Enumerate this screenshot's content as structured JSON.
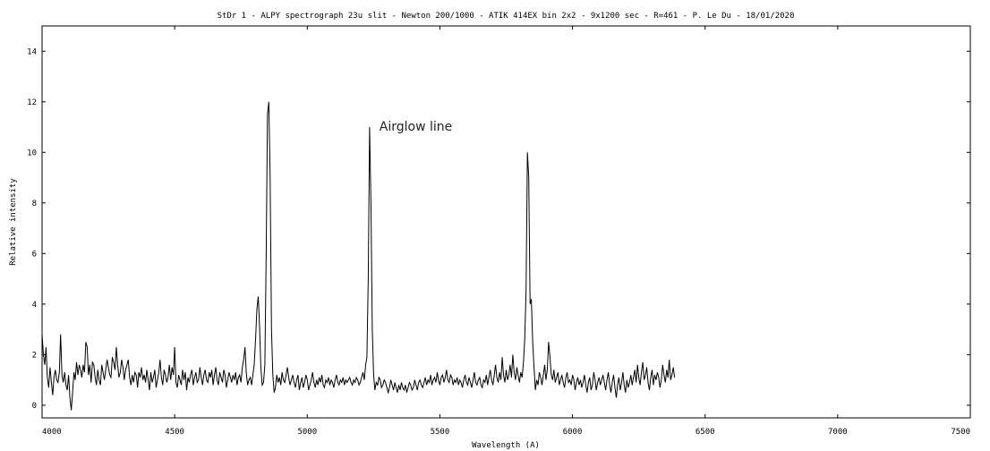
{
  "chart_data": {
    "type": "line",
    "title": "StDr 1 - ALPY spectrograph 23u slit - Newton 200/1000 - ATIK 414EX bin 2x2 - 9x1200 sec - R=461 - P. Le Du - 18/01/2020",
    "xlabel": "Wavelength (A)",
    "ylabel": "Relative intensity",
    "xlim": [
      4000,
      7500
    ],
    "ylim": [
      -0.5,
      15
    ],
    "x_ticks": [
      4000,
      4500,
      5000,
      5500,
      6000,
      6500,
      7000,
      7500
    ],
    "y_ticks": [
      0,
      2,
      4,
      6,
      8,
      10,
      12,
      14
    ],
    "grid": false,
    "annotations": [
      {
        "text": "Airglow line",
        "x": 5577,
        "y": 11.0
      }
    ],
    "series": [
      {
        "x_start": 4000,
        "x_step": 5,
        "values": [
          2.8,
          2.0,
          1.6,
          2.3,
          1.1,
          0.7,
          1.5,
          0.9,
          0.4,
          1.1,
          1.4,
          1.0,
          0.9,
          1.3,
          2.8,
          1.2,
          0.9,
          1.3,
          0.8,
          0.6,
          1.2,
          0.3,
          -0.2,
          0.5,
          1.3,
          1.0,
          1.7,
          1.2,
          1.6,
          1.4,
          1.1,
          1.6,
          1.3,
          2.5,
          2.3,
          1.2,
          1.6,
          0.9,
          1.7,
          1.6,
          1.1,
          0.8,
          1.4,
          1.0,
          0.8,
          1.6,
          1.3,
          1.0,
          1.4,
          1.8,
          1.5,
          1.2,
          1.1,
          1.9,
          1.7,
          1.4,
          2.3,
          1.6,
          1.1,
          1.3,
          1.8,
          1.5,
          1.0,
          1.4,
          1.6,
          1.8,
          1.1,
          0.8,
          1.2,
          0.9,
          1.3,
          1.2,
          0.7,
          1.3,
          1.1,
          1.5,
          1.0,
          1.2,
          0.9,
          1.4,
          1.0,
          0.6,
          1.3,
          0.9,
          1.1,
          1.4,
          0.7,
          1.0,
          1.3,
          1.8,
          1.1,
          0.8,
          1.4,
          1.2,
          0.9,
          1.1,
          1.6,
          1.0,
          1.5,
          1.2,
          2.3,
          0.9,
          0.7,
          1.2,
          1.0,
          0.8,
          1.4,
          1.0,
          1.3,
          0.6,
          1.1,
          0.9,
          1.2,
          1.4,
          0.8,
          1.1,
          1.3,
          0.9,
          1.0,
          1.5,
          1.1,
          0.8,
          1.2,
          1.4,
          1.0,
          0.9,
          1.3,
          1.1,
          1.4,
          0.8,
          1.2,
          1.5,
          1.0,
          0.8,
          1.3,
          1.1,
          0.9,
          1.4,
          1.2,
          0.7,
          1.0,
          1.3,
          1.1,
          0.9,
          1.2,
          1.0,
          1.3,
          0.8,
          1.1,
          1.2,
          0.9,
          1.5,
          1.8,
          2.3,
          1.3,
          0.8,
          1.0,
          1.1,
          0.8,
          1.2,
          1.6,
          2.6,
          3.8,
          4.3,
          3.1,
          1.5,
          0.8,
          0.9,
          1.6,
          6.0,
          11.5,
          12.0,
          9.0,
          3.0,
          1.2,
          0.5,
          0.7,
          1.2,
          0.9,
          1.1,
          0.8,
          1.3,
          1.0,
          0.9,
          1.2,
          1.5,
          1.1,
          0.8,
          1.0,
          1.2,
          0.9,
          0.7,
          1.0,
          1.2,
          0.6,
          0.9,
          1.1,
          0.7,
          0.9,
          1.2,
          1.0,
          0.6,
          0.8,
          1.0,
          1.3,
          0.9,
          0.7,
          1.0,
          0.8,
          1.1,
          0.9,
          1.2,
          0.8,
          0.7,
          1.0,
          0.9,
          1.1,
          0.8,
          1.0,
          0.9,
          0.7,
          1.0,
          1.2,
          0.9,
          0.8,
          1.0,
          0.9,
          1.1,
          0.8,
          1.0,
          0.9,
          1.0,
          1.1,
          0.9,
          0.8,
          1.0,
          0.9,
          1.1,
          1.0,
          0.8,
          0.9,
          1.1,
          1.3,
          1.0,
          1.6,
          1.9,
          5.0,
          11.0,
          8.0,
          3.0,
          1.2,
          0.6,
          0.9,
          0.8,
          1.1,
          1.0,
          0.7,
          0.8,
          1.0,
          0.9,
          0.7,
          0.5,
          0.7,
          1.0,
          0.8,
          0.6,
          0.9,
          0.7,
          0.5,
          0.8,
          0.6,
          0.9,
          0.7,
          0.6,
          0.8,
          0.5,
          0.7,
          0.9,
          0.8,
          0.6,
          0.7,
          1.0,
          0.8,
          0.6,
          0.9,
          1.0,
          0.8,
          0.7,
          0.9,
          1.1,
          0.8,
          1.0,
          0.9,
          1.2,
          0.8,
          1.0,
          1.1,
          0.9,
          1.3,
          1.0,
          0.8,
          1.1,
          1.2,
          0.9,
          1.1,
          1.4,
          1.0,
          0.9,
          1.2,
          1.1,
          0.8,
          1.0,
          0.9,
          1.1,
          0.8,
          1.0,
          0.9,
          0.7,
          1.0,
          1.2,
          0.9,
          0.8,
          1.1,
          0.9,
          0.7,
          1.0,
          1.3,
          0.9,
          0.8,
          1.0,
          1.1,
          0.8,
          0.7,
          1.0,
          0.9,
          1.2,
          0.8,
          1.1,
          1.4,
          1.0,
          0.8,
          1.2,
          1.6,
          1.1,
          0.9,
          1.3,
          1.0,
          1.9,
          1.2,
          0.9,
          1.4,
          1.0,
          1.2,
          1.6,
          1.1,
          2.0,
          1.3,
          1.0,
          1.5,
          1.2,
          0.9,
          1.3,
          1.1,
          1.7,
          2.6,
          4.5,
          10.0,
          9.0,
          4.0,
          4.2,
          2.5,
          1.5,
          0.6,
          1.0,
          0.8,
          1.3,
          1.1,
          0.8,
          1.2,
          1.6,
          1.0,
          1.4,
          2.5,
          1.9,
          1.2,
          1.0,
          1.4,
          0.9,
          1.1,
          1.3,
          0.8,
          1.0,
          1.2,
          0.9,
          0.7,
          1.1,
          1.3,
          0.9,
          1.0,
          0.8,
          1.2,
          1.0,
          0.6,
          0.9,
          1.1,
          0.8,
          1.0,
          0.7,
          0.9,
          1.2,
          0.8,
          0.5,
          0.9,
          1.1,
          0.6,
          0.8,
          1.3,
          1.0,
          0.6,
          0.9,
          1.1,
          0.8,
          1.0,
          1.2,
          0.9,
          0.6,
          1.0,
          1.3,
          0.8,
          0.5,
          0.9,
          1.2,
          0.7,
          0.3,
          0.8,
          1.1,
          0.6,
          0.9,
          1.3,
          0.8,
          0.5,
          1.0,
          0.7,
          0.9,
          1.2,
          0.8,
          1.1,
          1.4,
          0.9,
          1.6,
          1.1,
          0.8,
          1.3,
          1.7,
          1.0,
          1.2,
          1.5,
          0.9,
          0.6,
          1.1,
          1.4,
          0.8,
          1.2,
          1.0,
          1.3,
          1.1,
          0.7,
          1.0,
          1.6,
          1.2,
          0.9,
          1.4,
          1.1,
          1.8,
          1.0,
          1.2,
          1.5,
          1.1
        ]
      }
    ]
  }
}
